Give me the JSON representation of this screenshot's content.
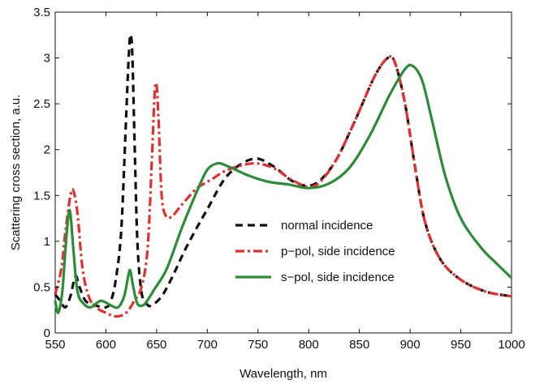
{
  "chart_data": {
    "type": "line",
    "title": "",
    "xlabel": "Wavelength, nm",
    "ylabel": "Scattering cross section, a.u.",
    "xlim": [
      550,
      1000
    ],
    "ylim": [
      0,
      3.5
    ],
    "xticks": [
      550,
      600,
      650,
      700,
      750,
      800,
      850,
      900,
      950,
      1000
    ],
    "yticks": [
      0,
      0.5,
      1,
      1.5,
      2,
      2.5,
      3,
      3.5
    ],
    "xtick_labels": [
      "550",
      "600",
      "650",
      "700",
      "750",
      "800",
      "850",
      "900",
      "950",
      "1000"
    ],
    "ytick_labels": [
      "0",
      "0.5",
      "1",
      "1.5",
      "2",
      "2.5",
      "3",
      "3.5"
    ],
    "grid": false,
    "legend_position": "center-right",
    "series": [
      {
        "name": "normal incidence",
        "color": "#111111",
        "dash": "dashed",
        "points": [
          [
            550,
            0.42
          ],
          [
            555,
            0.35
          ],
          [
            560,
            0.28
          ],
          [
            565,
            0.4
          ],
          [
            570,
            0.62
          ],
          [
            574,
            0.5
          ],
          [
            580,
            0.35
          ],
          [
            590,
            0.3
          ],
          [
            600,
            0.28
          ],
          [
            605,
            0.35
          ],
          [
            610,
            0.6
          ],
          [
            615,
            1.1
          ],
          [
            619,
            2.1
          ],
          [
            622,
            2.9
          ],
          [
            624,
            3.25
          ],
          [
            626,
            3.05
          ],
          [
            628,
            2.2
          ],
          [
            631,
            1.0
          ],
          [
            635,
            0.45
          ],
          [
            640,
            0.32
          ],
          [
            645,
            0.3
          ],
          [
            655,
            0.4
          ],
          [
            665,
            0.6
          ],
          [
            680,
            0.95
          ],
          [
            700,
            1.35
          ],
          [
            720,
            1.72
          ],
          [
            745,
            1.9
          ],
          [
            765,
            1.82
          ],
          [
            785,
            1.65
          ],
          [
            805,
            1.62
          ],
          [
            825,
            1.85
          ],
          [
            845,
            2.3
          ],
          [
            865,
            2.8
          ],
          [
            878,
            3.0
          ],
          [
            885,
            2.95
          ],
          [
            895,
            2.5
          ],
          [
            905,
            1.8
          ],
          [
            915,
            1.2
          ],
          [
            930,
            0.8
          ],
          [
            950,
            0.58
          ],
          [
            975,
            0.45
          ],
          [
            1000,
            0.4
          ]
        ]
      },
      {
        "name": "p−pol, side incidence",
        "color": "#e03030",
        "dash": "dashdot",
        "points": [
          [
            550,
            0.42
          ],
          [
            556,
            0.7
          ],
          [
            560,
            1.1
          ],
          [
            565,
            1.5
          ],
          [
            568,
            1.55
          ],
          [
            572,
            1.3
          ],
          [
            577,
            0.7
          ],
          [
            583,
            0.4
          ],
          [
            590,
            0.28
          ],
          [
            600,
            0.22
          ],
          [
            610,
            0.18
          ],
          [
            620,
            0.22
          ],
          [
            628,
            0.35
          ],
          [
            635,
            0.5
          ],
          [
            641,
            0.9
          ],
          [
            645,
            1.8
          ],
          [
            648,
            2.6
          ],
          [
            650,
            2.7
          ],
          [
            652,
            2.3
          ],
          [
            655,
            1.5
          ],
          [
            659,
            1.28
          ],
          [
            665,
            1.27
          ],
          [
            675,
            1.4
          ],
          [
            690,
            1.58
          ],
          [
            705,
            1.68
          ],
          [
            720,
            1.78
          ],
          [
            745,
            1.85
          ],
          [
            765,
            1.8
          ],
          [
            785,
            1.66
          ],
          [
            805,
            1.6
          ],
          [
            825,
            1.85
          ],
          [
            845,
            2.3
          ],
          [
            865,
            2.8
          ],
          [
            878,
            3.0
          ],
          [
            885,
            2.95
          ],
          [
            895,
            2.5
          ],
          [
            905,
            1.8
          ],
          [
            915,
            1.2
          ],
          [
            930,
            0.8
          ],
          [
            950,
            0.58
          ],
          [
            975,
            0.45
          ],
          [
            1000,
            0.4
          ]
        ]
      },
      {
        "name": "s−pol, side incidence",
        "color": "#2e8b3a",
        "dash": "solid",
        "points": [
          [
            550,
            0.35
          ],
          [
            553,
            0.22
          ],
          [
            557,
            0.45
          ],
          [
            560,
            0.9
          ],
          [
            563,
            1.28
          ],
          [
            565,
            1.3
          ],
          [
            568,
            0.9
          ],
          [
            572,
            0.45
          ],
          [
            578,
            0.32
          ],
          [
            585,
            0.28
          ],
          [
            595,
            0.35
          ],
          [
            605,
            0.3
          ],
          [
            612,
            0.28
          ],
          [
            618,
            0.4
          ],
          [
            622,
            0.62
          ],
          [
            624,
            0.68
          ],
          [
            627,
            0.5
          ],
          [
            631,
            0.32
          ],
          [
            636,
            0.3
          ],
          [
            640,
            0.34
          ],
          [
            648,
            0.48
          ],
          [
            660,
            0.7
          ],
          [
            675,
            1.15
          ],
          [
            690,
            1.55
          ],
          [
            700,
            1.78
          ],
          [
            710,
            1.85
          ],
          [
            720,
            1.82
          ],
          [
            740,
            1.72
          ],
          [
            760,
            1.65
          ],
          [
            780,
            1.62
          ],
          [
            800,
            1.58
          ],
          [
            820,
            1.63
          ],
          [
            840,
            1.8
          ],
          [
            860,
            2.15
          ],
          [
            880,
            2.6
          ],
          [
            895,
            2.88
          ],
          [
            903,
            2.91
          ],
          [
            912,
            2.75
          ],
          [
            922,
            2.3
          ],
          [
            935,
            1.7
          ],
          [
            950,
            1.25
          ],
          [
            970,
            0.93
          ],
          [
            985,
            0.76
          ],
          [
            1000,
            0.6
          ]
        ]
      }
    ]
  }
}
